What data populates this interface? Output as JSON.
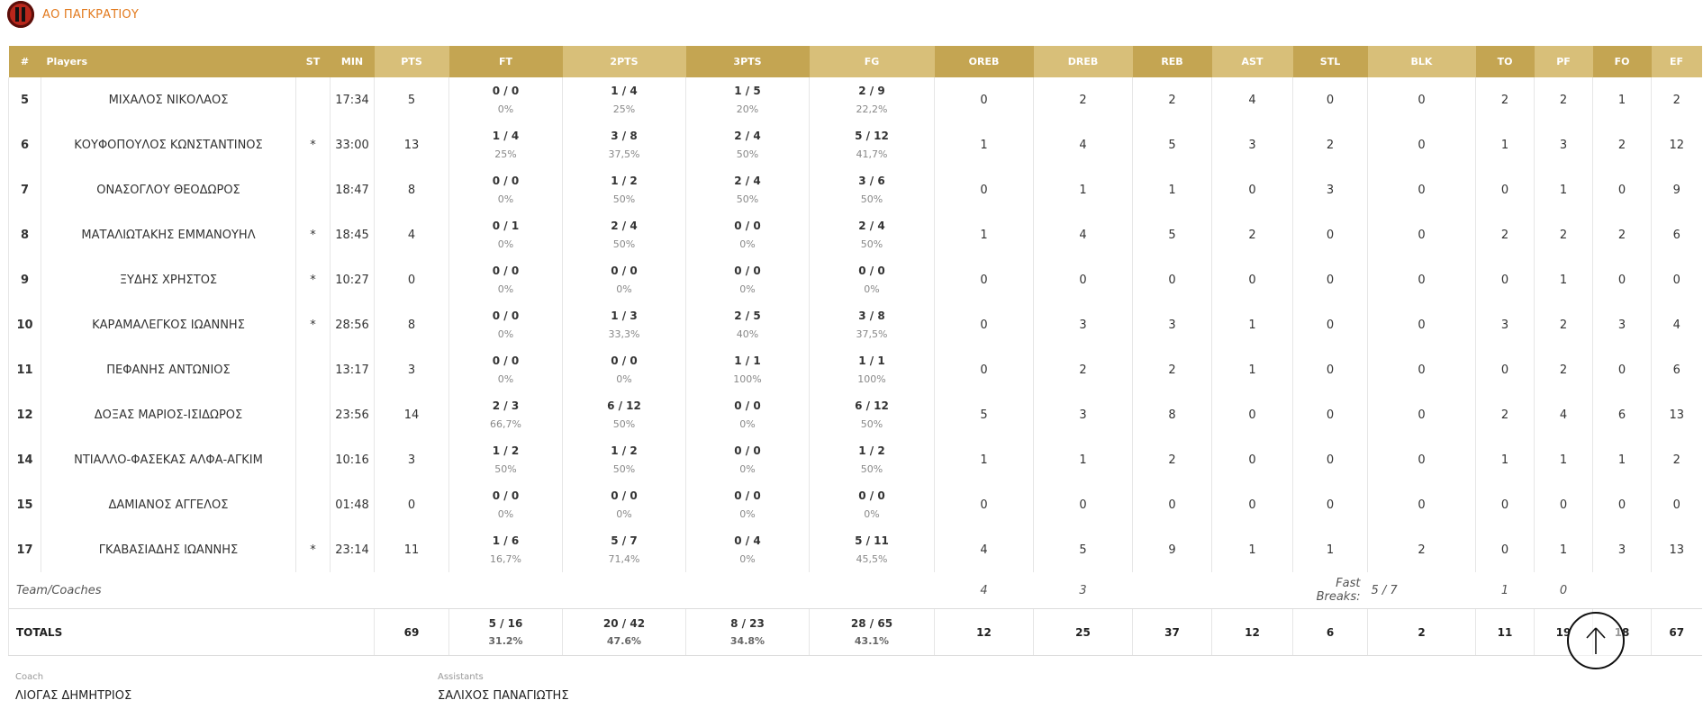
{
  "team": {
    "name": "ΑΟ ΠΑΓΚΡΑΤΙΟΥ"
  },
  "colors": {
    "header_dark": "#c4a552",
    "header_light": "#d8bf79",
    "team_name": "#e27a1e"
  },
  "columns": [
    "#",
    "Players",
    "ST",
    "MIN",
    "PTS",
    "FT",
    "2PTS",
    "3PTS",
    "FG",
    "OREB",
    "DREB",
    "REB",
    "AST",
    "STL",
    "BLK",
    "TO",
    "PF",
    "FO",
    "EF"
  ],
  "players": [
    {
      "num": "5",
      "name": "ΜΙΧΑΛΟΣ ΝΙΚΟΛΑΟΣ",
      "st": "",
      "min": "17:34",
      "pts": "5",
      "ft": "0 / 0",
      "ft_pct": "0%",
      "p2": "1 / 4",
      "p2_pct": "25%",
      "p3": "1 / 5",
      "p3_pct": "20%",
      "fg": "2 / 9",
      "fg_pct": "22,2%",
      "oreb": "0",
      "dreb": "2",
      "reb": "2",
      "ast": "4",
      "stl": "0",
      "blk": "0",
      "to": "2",
      "pf": "2",
      "fo": "1",
      "ef": "2"
    },
    {
      "num": "6",
      "name": "ΚΟΥΦΟΠΟΥΛΟΣ ΚΩΝΣΤΑΝΤΙΝΟΣ",
      "st": "*",
      "min": "33:00",
      "pts": "13",
      "ft": "1 / 4",
      "ft_pct": "25%",
      "p2": "3 / 8",
      "p2_pct": "37,5%",
      "p3": "2 / 4",
      "p3_pct": "50%",
      "fg": "5 / 12",
      "fg_pct": "41,7%",
      "oreb": "1",
      "dreb": "4",
      "reb": "5",
      "ast": "3",
      "stl": "2",
      "blk": "0",
      "to": "1",
      "pf": "3",
      "fo": "2",
      "ef": "12"
    },
    {
      "num": "7",
      "name": "ΟΝΑΣΟΓΛΟΥ ΘΕΟΔΩΡΟΣ",
      "st": "",
      "min": "18:47",
      "pts": "8",
      "ft": "0 / 0",
      "ft_pct": "0%",
      "p2": "1 / 2",
      "p2_pct": "50%",
      "p3": "2 / 4",
      "p3_pct": "50%",
      "fg": "3 / 6",
      "fg_pct": "50%",
      "oreb": "0",
      "dreb": "1",
      "reb": "1",
      "ast": "0",
      "stl": "3",
      "blk": "0",
      "to": "0",
      "pf": "1",
      "fo": "0",
      "ef": "9"
    },
    {
      "num": "8",
      "name": "ΜΑΤΑΛΙΩΤΑΚΗΣ ΕΜΜΑΝΟΥΗΛ",
      "st": "*",
      "min": "18:45",
      "pts": "4",
      "ft": "0 / 1",
      "ft_pct": "0%",
      "p2": "2 / 4",
      "p2_pct": "50%",
      "p3": "0 / 0",
      "p3_pct": "0%",
      "fg": "2 / 4",
      "fg_pct": "50%",
      "oreb": "1",
      "dreb": "4",
      "reb": "5",
      "ast": "2",
      "stl": "0",
      "blk": "0",
      "to": "2",
      "pf": "2",
      "fo": "2",
      "ef": "6"
    },
    {
      "num": "9",
      "name": "ΞΥΔΗΣ ΧΡΗΣΤΟΣ",
      "st": "*",
      "min": "10:27",
      "pts": "0",
      "ft": "0 / 0",
      "ft_pct": "0%",
      "p2": "0 / 0",
      "p2_pct": "0%",
      "p3": "0 / 0",
      "p3_pct": "0%",
      "fg": "0 / 0",
      "fg_pct": "0%",
      "oreb": "0",
      "dreb": "0",
      "reb": "0",
      "ast": "0",
      "stl": "0",
      "blk": "0",
      "to": "0",
      "pf": "1",
      "fo": "0",
      "ef": "0"
    },
    {
      "num": "10",
      "name": "ΚΑΡΑΜΑΛΕΓΚΟΣ ΙΩΑΝΝΗΣ",
      "st": "*",
      "min": "28:56",
      "pts": "8",
      "ft": "0 / 0",
      "ft_pct": "0%",
      "p2": "1 / 3",
      "p2_pct": "33,3%",
      "p3": "2 / 5",
      "p3_pct": "40%",
      "fg": "3 / 8",
      "fg_pct": "37,5%",
      "oreb": "0",
      "dreb": "3",
      "reb": "3",
      "ast": "1",
      "stl": "0",
      "blk": "0",
      "to": "3",
      "pf": "2",
      "fo": "3",
      "ef": "4"
    },
    {
      "num": "11",
      "name": "ΠΕΦΑΝΗΣ ΑΝΤΩΝΙΟΣ",
      "st": "",
      "min": "13:17",
      "pts": "3",
      "ft": "0 / 0",
      "ft_pct": "0%",
      "p2": "0 / 0",
      "p2_pct": "0%",
      "p3": "1 / 1",
      "p3_pct": "100%",
      "fg": "1 / 1",
      "fg_pct": "100%",
      "oreb": "0",
      "dreb": "2",
      "reb": "2",
      "ast": "1",
      "stl": "0",
      "blk": "0",
      "to": "0",
      "pf": "2",
      "fo": "0",
      "ef": "6"
    },
    {
      "num": "12",
      "name": "ΔΟΞΑΣ ΜΑΡΙΟΣ-ΙΣΙΔΩΡΟΣ",
      "st": "",
      "min": "23:56",
      "pts": "14",
      "ft": "2 / 3",
      "ft_pct": "66,7%",
      "p2": "6 / 12",
      "p2_pct": "50%",
      "p3": "0 / 0",
      "p3_pct": "0%",
      "fg": "6 / 12",
      "fg_pct": "50%",
      "oreb": "5",
      "dreb": "3",
      "reb": "8",
      "ast": "0",
      "stl": "0",
      "blk": "0",
      "to": "2",
      "pf": "4",
      "fo": "6",
      "ef": "13"
    },
    {
      "num": "14",
      "name": "ΝΤΙΑΛΛΟ-ΦΑΣΕΚΑΣ ΑΛΦΑ-ΑΓΚΙΜ",
      "st": "",
      "min": "10:16",
      "pts": "3",
      "ft": "1 / 2",
      "ft_pct": "50%",
      "p2": "1 / 2",
      "p2_pct": "50%",
      "p3": "0 / 0",
      "p3_pct": "0%",
      "fg": "1 / 2",
      "fg_pct": "50%",
      "oreb": "1",
      "dreb": "1",
      "reb": "2",
      "ast": "0",
      "stl": "0",
      "blk": "0",
      "to": "1",
      "pf": "1",
      "fo": "1",
      "ef": "2"
    },
    {
      "num": "15",
      "name": "ΔΑΜΙΑΝΟΣ ΑΓΓΕΛΟΣ",
      "st": "",
      "min": "01:48",
      "pts": "0",
      "ft": "0 / 0",
      "ft_pct": "0%",
      "p2": "0 / 0",
      "p2_pct": "0%",
      "p3": "0 / 0",
      "p3_pct": "0%",
      "fg": "0 / 0",
      "fg_pct": "0%",
      "oreb": "0",
      "dreb": "0",
      "reb": "0",
      "ast": "0",
      "stl": "0",
      "blk": "0",
      "to": "0",
      "pf": "0",
      "fo": "0",
      "ef": "0"
    },
    {
      "num": "17",
      "name": "ΓΚΑΒΑΣΙΑΔΗΣ ΙΩΑΝΝΗΣ",
      "st": "*",
      "min": "23:14",
      "pts": "11",
      "ft": "1 / 6",
      "ft_pct": "16,7%",
      "p2": "5 / 7",
      "p2_pct": "71,4%",
      "p3": "0 / 4",
      "p3_pct": "0%",
      "fg": "5 / 11",
      "fg_pct": "45,5%",
      "oreb": "4",
      "dreb": "5",
      "reb": "9",
      "ast": "1",
      "stl": "1",
      "blk": "2",
      "to": "0",
      "pf": "1",
      "fo": "3",
      "ef": "13"
    }
  ],
  "team_coaches": {
    "label": "Team/Coaches",
    "oreb": "4",
    "dreb": "3",
    "fast_breaks_label": "Fast Breaks:",
    "fast_breaks_value": "5 / 7",
    "to": "1",
    "pf": "0"
  },
  "totals": {
    "label": "TOTALS",
    "pts": "69",
    "ft": "5 / 16",
    "ft_pct": "31.2%",
    "p2": "20 / 42",
    "p2_pct": "47.6%",
    "p3": "8 / 23",
    "p3_pct": "34.8%",
    "fg": "28 / 65",
    "fg_pct": "43.1%",
    "oreb": "12",
    "dreb": "25",
    "reb": "37",
    "ast": "12",
    "stl": "6",
    "blk": "2",
    "to": "11",
    "pf": "19",
    "fo": "18",
    "ef": "67"
  },
  "coach": {
    "label": "Coach",
    "name": "ΛΙΟΓΑΣ ΔΗΜΗΤΡΙΟΣ"
  },
  "assistants": {
    "label": "Assistants",
    "name": "ΣΑΛΙΧΟΣ ΠΑΝΑΓΙΩΤΗΣ"
  },
  "scroll_top": {
    "icon": "arrow-up-icon"
  }
}
